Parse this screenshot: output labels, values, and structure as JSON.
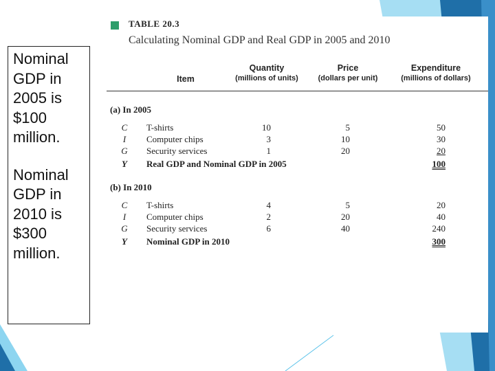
{
  "note": {
    "line1": "Nominal\nGDP in\n2005 is\n$100\nmillion.",
    "line2": "Nominal\nGDP in\n2010 is\n$300\nmillion."
  },
  "table": {
    "number": "TABLE 20.3",
    "title": "Calculating Nominal GDP and Real GDP in 2005 and 2010",
    "headers": {
      "item": "Item",
      "quantity": "Quantity",
      "quantity_unit": "(millions of units)",
      "price": "Price",
      "price_unit": "(dollars per unit)",
      "expenditure": "Expenditure",
      "expenditure_unit": "(millions of dollars)"
    },
    "section_a": {
      "label": "(a) In 2005",
      "rows": [
        {
          "sym": "C",
          "item": "T-shirts",
          "qty": "10",
          "price": "5",
          "exp": "50"
        },
        {
          "sym": "I",
          "item": "Computer chips",
          "qty": "3",
          "price": "10",
          "exp": "30"
        },
        {
          "sym": "G",
          "item": "Security services",
          "qty": "1",
          "price": "20",
          "exp": "20"
        }
      ],
      "total": {
        "sym": "Y",
        "item": "Real GDP and Nominal GDP in 2005",
        "exp": "100"
      }
    },
    "section_b": {
      "label": "(b) In 2010",
      "rows": [
        {
          "sym": "C",
          "item": "T-shirts",
          "qty": "4",
          "price": "5",
          "exp": "20"
        },
        {
          "sym": "I",
          "item": "Computer chips",
          "qty": "2",
          "price": "20",
          "exp": "40"
        },
        {
          "sym": "G",
          "item": "Security services",
          "qty": "6",
          "price": "40",
          "exp": "240"
        }
      ],
      "total": {
        "sym": "Y",
        "item": "Nominal GDP in 2010",
        "exp": "300"
      }
    }
  },
  "theme": {
    "accent_dark": "#1f6fa8",
    "accent_light": "#5cc3ea",
    "badge": "#2e9e6b"
  }
}
